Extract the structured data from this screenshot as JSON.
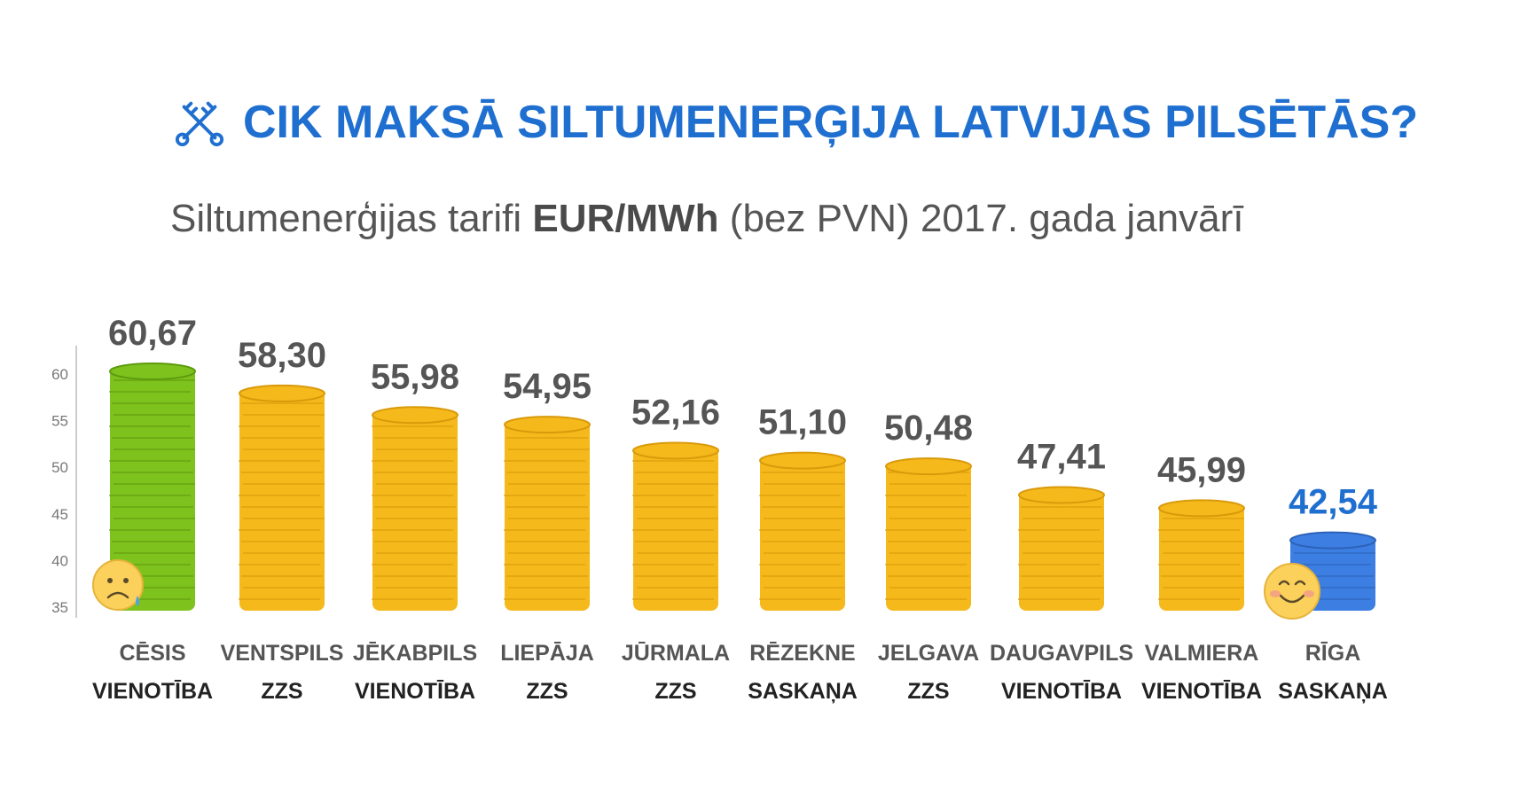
{
  "title": "CIK MAKSĀ SILTUMENERĢIJA LATVIJAS PILSĒTĀS?",
  "subtitle": {
    "part1": "Siltumenerģijas tarifi ",
    "bold": "EUR/MWh",
    "part2": " (bez PVN) 2017. gada janvārī"
  },
  "icons": {
    "title": "crossed-keys-icon",
    "sad": "sad-face-icon",
    "happy": "happy-face-icon"
  },
  "colors": {
    "title": "#1f6fd0",
    "green": "#7ec21d",
    "gold": "#f5b91c",
    "blue": "#3c7ee2",
    "highlight_value": "#1f6fd0"
  },
  "chart_data": {
    "type": "bar",
    "title": "CIK MAKSĀ SILTUMENERĢIJA LATVIJAS PILSĒTĀS?",
    "categories": [
      "CĒSIS",
      "VENTSPILS",
      "JĒKABPILS",
      "LIEPĀJA",
      "JŪRMALA",
      "RĒZEKNE",
      "JELGAVA",
      "DAUGAVPILS",
      "VALMIERA",
      "RĪGA"
    ],
    "parties": [
      "VIENOTĪBA",
      "ZZS",
      "VIENOTĪBA",
      "ZZS",
      "ZZS",
      "SASKAŅA",
      "ZZS",
      "VIENOTĪBA",
      "VIENOTĪBA",
      "SASKAŅA"
    ],
    "values": [
      60.67,
      58.3,
      55.98,
      54.95,
      52.16,
      51.1,
      50.48,
      47.41,
      45.99,
      42.54
    ],
    "value_labels": [
      "60,67",
      "58,30",
      "55,98",
      "54,95",
      "52,16",
      "51,10",
      "50,48",
      "47,41",
      "45,99",
      "42,54"
    ],
    "bar_colors": [
      "#7ec21d",
      "#f5b91c",
      "#f5b91c",
      "#f5b91c",
      "#f5b91c",
      "#f5b91c",
      "#f5b91c",
      "#f5b91c",
      "#f5b91c",
      "#3c7ee2"
    ],
    "ylim": [
      35,
      62
    ],
    "yticks": [
      35,
      40,
      45,
      50,
      55,
      60
    ],
    "ytick_labels": [
      "35",
      "40",
      "45",
      "50",
      "55",
      "60"
    ],
    "xlabel": "",
    "ylabel": ""
  }
}
